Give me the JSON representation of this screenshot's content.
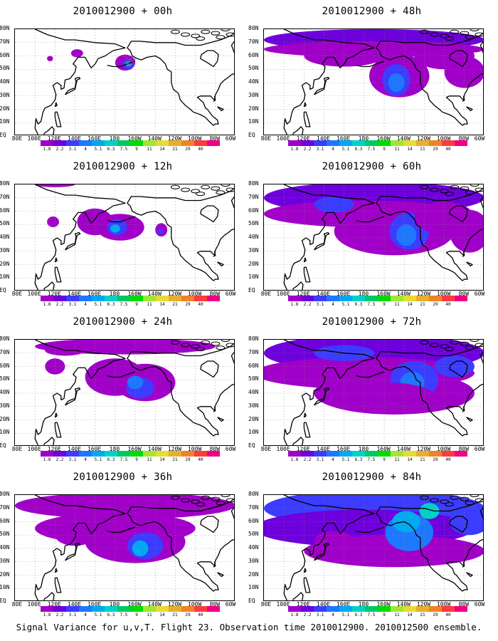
{
  "panels": [
    {
      "title": "2010012900 + 00h",
      "level": 0
    },
    {
      "title": "2010012900 + 48h",
      "level": 4
    },
    {
      "title": "2010012900 + 12h",
      "level": 1
    },
    {
      "title": "2010012900 + 60h",
      "level": 5
    },
    {
      "title": "2010012900 + 24h",
      "level": 2
    },
    {
      "title": "2010012900 + 72h",
      "level": 6
    },
    {
      "title": "2010012900 + 36h",
      "level": 3
    },
    {
      "title": "2010012900 + 84h",
      "level": 7
    }
  ],
  "axes": {
    "lat_labels": [
      "80N",
      "70N",
      "60N",
      "50N",
      "40N",
      "30N",
      "20N",
      "10N",
      "EQ"
    ],
    "lon_labels": [
      "80E",
      "100E",
      "120E",
      "140E",
      "160E",
      "180",
      "160W",
      "140W",
      "120W",
      "100W",
      "80W",
      "60W"
    ]
  },
  "colorbar": {
    "colors": [
      "#a000c8",
      "#6e00dc",
      "#3c3cff",
      "#1e78ff",
      "#00aaf0",
      "#00d2c8",
      "#00c864",
      "#00dc00",
      "#a0e632",
      "#e6dc32",
      "#e6af2d",
      "#f08228",
      "#fa3c3c",
      "#f00082"
    ],
    "labels": [
      "1.8",
      "2.2",
      "3.1",
      "4",
      "5.1",
      "6.3",
      "7.5",
      "9",
      "11",
      "14",
      "21",
      "29",
      "40"
    ]
  },
  "footer": "Signal Variance for u,v,T. Flight 23. Observation time 2010012900. 2010012500 ensemble."
}
